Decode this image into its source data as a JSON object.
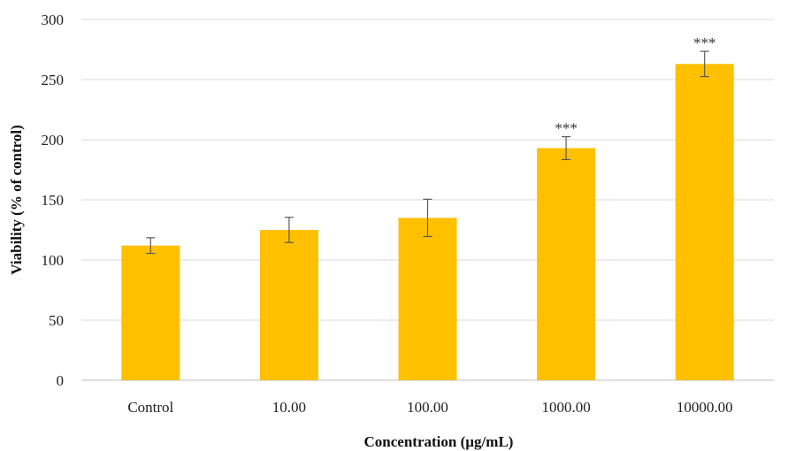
{
  "chart_data": {
    "type": "bar",
    "title": "",
    "xlabel": "Concentration (µg/mL)",
    "ylabel": "Viability (% of control)",
    "categories": [
      "Control",
      "10.00",
      "100.00",
      "1000.00",
      "10000.00"
    ],
    "values": [
      112,
      125,
      135,
      193,
      263
    ],
    "error": [
      6.5,
      10.5,
      15.5,
      9.5,
      10.5
    ],
    "annotations": [
      "",
      "",
      "",
      "***",
      "***"
    ],
    "ylim": [
      0,
      300
    ],
    "yticks": [
      0,
      50,
      100,
      150,
      200,
      250,
      300
    ],
    "grid": true,
    "legend": false,
    "colors": {
      "bar": "#FFC000",
      "error_bar": "#595959",
      "grid": "#D9D9D9"
    }
  }
}
